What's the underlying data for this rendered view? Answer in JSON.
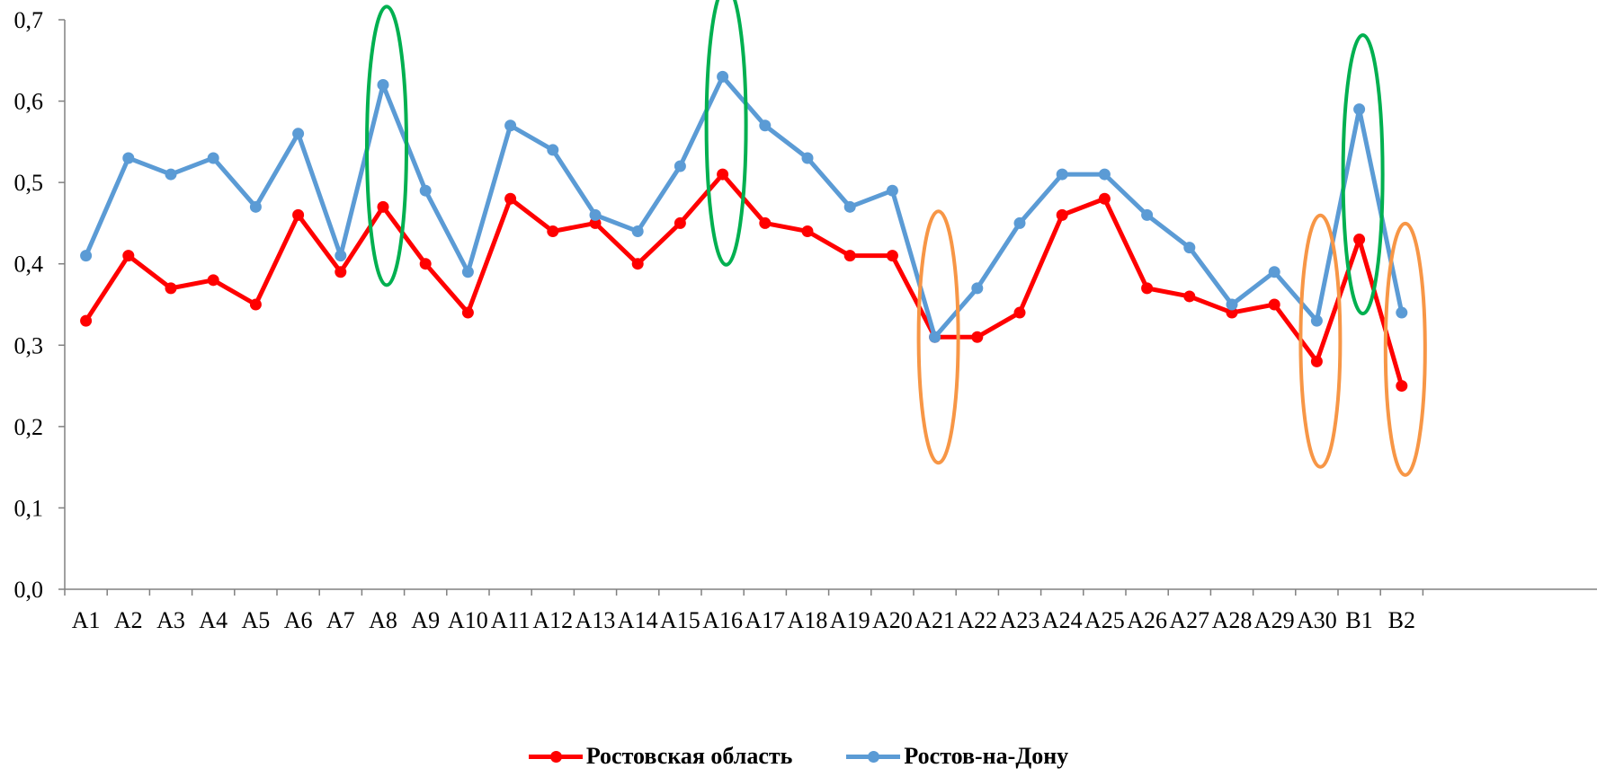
{
  "chart_data": {
    "type": "line",
    "categories": [
      "A1",
      "A2",
      "A3",
      "A4",
      "A5",
      "A6",
      "A7",
      "A8",
      "A9",
      "A10",
      "A11",
      "A12",
      "A13",
      "A14",
      "A15",
      "A16",
      "A17",
      "A18",
      "A19",
      "A20",
      "A21",
      "A22",
      "A23",
      "A24",
      "A25",
      "A26",
      "A27",
      "A28",
      "A29",
      "A30",
      "B1",
      "B2"
    ],
    "yticks": [
      "0,0",
      "0,1",
      "0,2",
      "0,3",
      "0,4",
      "0,5",
      "0,6",
      "0,7"
    ],
    "ylim": [
      0,
      0.7
    ],
    "grid": false,
    "legend_position": "bottom",
    "series": [
      {
        "name": "Ростовская область",
        "color": "#ff0000",
        "values": [
          0.33,
          0.41,
          0.37,
          0.38,
          0.35,
          0.46,
          0.39,
          0.47,
          0.4,
          0.34,
          0.48,
          0.44,
          0.45,
          0.4,
          0.45,
          0.51,
          0.45,
          0.44,
          0.41,
          0.41,
          0.31,
          0.31,
          0.34,
          0.46,
          0.48,
          0.37,
          0.36,
          0.34,
          0.35,
          0.28,
          0.43,
          0.25
        ]
      },
      {
        "name": "Ростов-на-Дону",
        "color": "#5b9bd5",
        "values": [
          0.41,
          0.53,
          0.51,
          0.53,
          0.47,
          0.56,
          0.41,
          0.62,
          0.49,
          0.39,
          0.57,
          0.54,
          0.46,
          0.44,
          0.52,
          0.63,
          0.57,
          0.53,
          0.47,
          0.49,
          0.31,
          0.37,
          0.45,
          0.51,
          0.51,
          0.46,
          0.42,
          0.35,
          0.39,
          0.33,
          0.59,
          0.34
        ]
      }
    ],
    "annotations": [
      {
        "shape": "ellipse",
        "category": "A8",
        "color": "#00b050"
      },
      {
        "shape": "ellipse",
        "category": "A16",
        "color": "#00b050"
      },
      {
        "shape": "ellipse",
        "category": "B1",
        "color": "#00b050"
      },
      {
        "shape": "ellipse",
        "category": "A21",
        "color": "#f79646"
      },
      {
        "shape": "ellipse",
        "category": "A30",
        "color": "#f79646"
      },
      {
        "shape": "ellipse",
        "category": "B2",
        "color": "#f79646"
      }
    ]
  }
}
